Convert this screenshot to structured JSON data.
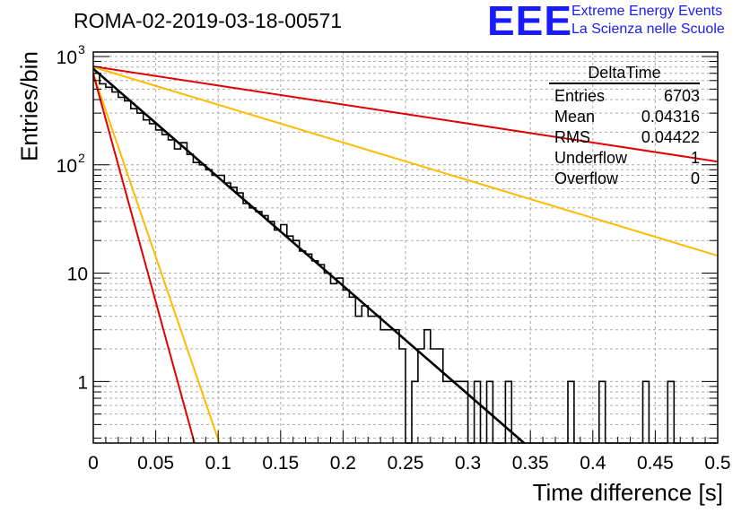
{
  "header": {
    "title": "ROMA-02-2019-03-18-00571",
    "logo_text": "EEE",
    "logo_line1": "Extreme Energy Events",
    "logo_line2": "La Scienza nelle Scuole"
  },
  "stats_box": {
    "name": "DeltaTime",
    "rows": [
      {
        "label": "Entries",
        "value": "6703"
      },
      {
        "label": "Mean",
        "value": "0.04316"
      },
      {
        "label": "RMS",
        "value": "0.04422"
      },
      {
        "label": "Underflow",
        "value": "1"
      },
      {
        "label": "Overflow",
        "value": "0"
      }
    ]
  },
  "chart_data": {
    "type": "histogram",
    "title": "ROMA-02-2019-03-18-00571",
    "xlabel": "Time difference [s]",
    "ylabel": "Entries/bin",
    "xlim": [
      0,
      0.5
    ],
    "ylim_log": [
      0.27,
      1100
    ],
    "yscale": "log",
    "grid": true,
    "x_ticks": [
      "0",
      "0.05",
      "0.1",
      "0.15",
      "0.2",
      "0.25",
      "0.3",
      "0.35",
      "0.4",
      "0.45",
      "0.5"
    ],
    "y_ticks": [
      {
        "value": 1,
        "label": "1"
      },
      {
        "value": 10,
        "label": "10"
      },
      {
        "value": 100,
        "label": "10",
        "exp": "2"
      },
      {
        "value": 1000,
        "label": "10",
        "exp": "3"
      }
    ],
    "bin_width": 0.005,
    "histogram_values": [
      700,
      560,
      520,
      470,
      420,
      390,
      330,
      300,
      260,
      240,
      210,
      190,
      170,
      140,
      160,
      125,
      105,
      100,
      90,
      80,
      80,
      68,
      62,
      55,
      44,
      40,
      37,
      34,
      30,
      25,
      28,
      22,
      20,
      16,
      15,
      13,
      12,
      10,
      8,
      9,
      7,
      6,
      4,
      5,
      4,
      4,
      3,
      3,
      3,
      2,
      0,
      1,
      2,
      3,
      2,
      2,
      1,
      1,
      1,
      1,
      0,
      1,
      0,
      1,
      0,
      0,
      1,
      0,
      0,
      0,
      0,
      0,
      0,
      0,
      0,
      0,
      1,
      0,
      0,
      0,
      0,
      1,
      0,
      0,
      0,
      0,
      0,
      0,
      1,
      0,
      0,
      0,
      1,
      0,
      0,
      0,
      0,
      0,
      0,
      0
    ],
    "series": [
      {
        "name": "fit",
        "color": "#000000",
        "x": [
          0.0,
          0.345
        ],
        "y": [
          770,
          0.27
        ]
      },
      {
        "name": "red-slow",
        "color": "#e00000",
        "x": [
          0.0,
          0.5
        ],
        "y": [
          810,
          107
        ]
      },
      {
        "name": "orange-slow",
        "color": "#ffbb00",
        "x": [
          0.0,
          0.5
        ],
        "y": [
          800,
          14.5
        ]
      },
      {
        "name": "orange-fast",
        "color": "#ffbb00",
        "x": [
          0.0,
          0.101
        ],
        "y": [
          690,
          0.27
        ]
      },
      {
        "name": "red-fast",
        "color": "#e00000",
        "x": [
          0.0,
          0.081
        ],
        "y": [
          690,
          0.27
        ]
      }
    ]
  }
}
